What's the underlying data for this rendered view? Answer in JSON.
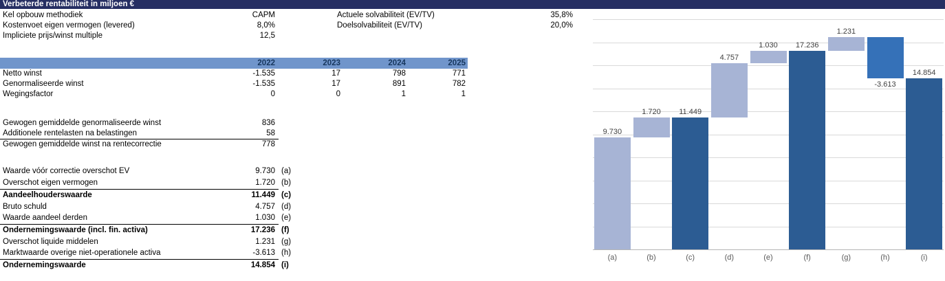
{
  "title": "Verbeterde rentabiliteit in miljoen €",
  "info": {
    "left": [
      {
        "label": "Kel opbouw methodiek",
        "value": "CAPM"
      },
      {
        "label": "Kostenvoet eigen vermogen (levered)",
        "value": "8,0%"
      },
      {
        "label": "Impliciete prijs/winst multiple",
        "value": "12,5"
      }
    ],
    "right": [
      {
        "label": "Actuele solvabiliteit (EV/TV)",
        "value": "35,8%"
      },
      {
        "label": "Doelsolvabiliteit (EV/TV)",
        "value": "20,0%"
      }
    ]
  },
  "year_table": {
    "years": [
      "2022",
      "2023",
      "2024",
      "2025"
    ],
    "rows": [
      {
        "label": "Netto winst",
        "values": [
          "-1.535",
          "17",
          "798",
          "771"
        ]
      },
      {
        "label": "Genormaliseerde winst",
        "values": [
          "-1.535",
          "17",
          "891",
          "782"
        ]
      },
      {
        "label": "Wegingsfactor",
        "values": [
          "0",
          "0",
          "1",
          "1"
        ]
      }
    ]
  },
  "summary1": [
    {
      "label": "Gewogen gemiddelde genormaliseerde winst",
      "value": "836"
    },
    {
      "label": "Additionele rentelasten na belastingen",
      "value": "58"
    },
    {
      "label": "Gewogen gemiddelde winst na rentecorrectie",
      "value": "778"
    }
  ],
  "summary2": [
    {
      "label": "Waarde vóór correctie overschot EV",
      "value": "9.730",
      "tag": "(a)"
    },
    {
      "label": "Overschot eigen vermogen",
      "value": "1.720",
      "tag": "(b)"
    },
    {
      "label": "Aandeelhouderswaarde",
      "value": "11.449",
      "tag": "(c)"
    },
    {
      "label": "Bruto schuld",
      "value": "4.757",
      "tag": "(d)"
    },
    {
      "label": "Waarde aandeel derden",
      "value": "1.030",
      "tag": "(e)"
    },
    {
      "label": "Ondernemingswaarde (incl. fin. activa)",
      "value": "17.236",
      "tag": "(f)"
    },
    {
      "label": "Overschot liquide middelen",
      "value": "1.231",
      "tag": "(g)"
    },
    {
      "label": "Marktwaarde overige niet-operationele activa",
      "value": "-3.613",
      "tag": "(h)"
    },
    {
      "label": "Ondernemingswaarde",
      "value": "14.854",
      "tag": "(i)"
    }
  ],
  "colors": {
    "title_bar": "#262F63",
    "year_header_band": "#7095CB",
    "year_header_text": "#17375E",
    "gridline": "#D9D9D9",
    "axis_line": "#B5B5B5",
    "category_label": "#595959",
    "data_label": "#3F3F3F"
  },
  "chart_data": {
    "type": "bar",
    "subtype": "waterfall",
    "title": "",
    "xlabel": "",
    "ylabel": "",
    "categories": [
      "(a)",
      "(b)",
      "(c)",
      "(d)",
      "(e)",
      "(f)",
      "(g)",
      "(h)",
      "(i)"
    ],
    "values": [
      9730,
      1720,
      11449,
      4757,
      1030,
      17236,
      1231,
      -3613,
      14854
    ],
    "ylim": [
      0,
      20000
    ],
    "gridline_step": 2000,
    "grid": true,
    "legend": false,
    "y_tick_labels_visible": false,
    "bar_colors": {
      "light": "#A7B4D5",
      "dark": "#2C5C93",
      "medium": "#3571B8"
    },
    "bars": [
      {
        "category": "(a)",
        "from": 0,
        "to": 9730,
        "color": "light",
        "label": "9.730",
        "label_pos": "above"
      },
      {
        "category": "(b)",
        "from": 9730,
        "to": 11449,
        "color": "light",
        "label": "1.720",
        "label_pos": "above"
      },
      {
        "category": "(c)",
        "from": 0,
        "to": 11449,
        "color": "dark",
        "label": "11.449",
        "label_pos": "above"
      },
      {
        "category": "(d)",
        "from": 11449,
        "to": 16206,
        "color": "light",
        "label": "4.757",
        "label_pos": "above"
      },
      {
        "category": "(e)",
        "from": 16206,
        "to": 17236,
        "color": "light",
        "label": "1.030",
        "label_pos": "above"
      },
      {
        "category": "(f)",
        "from": 0,
        "to": 17236,
        "color": "dark",
        "label": "17.236",
        "label_pos": "above"
      },
      {
        "category": "(g)",
        "from": 17236,
        "to": 18467,
        "color": "light",
        "label": "1.231",
        "label_pos": "above"
      },
      {
        "category": "(h)",
        "from": 14854,
        "to": 18467,
        "color": "medium",
        "label": "-3.613",
        "label_pos": "below"
      },
      {
        "category": "(i)",
        "from": 0,
        "to": 14854,
        "color": "dark",
        "label": "14.854",
        "label_pos": "above"
      }
    ]
  }
}
